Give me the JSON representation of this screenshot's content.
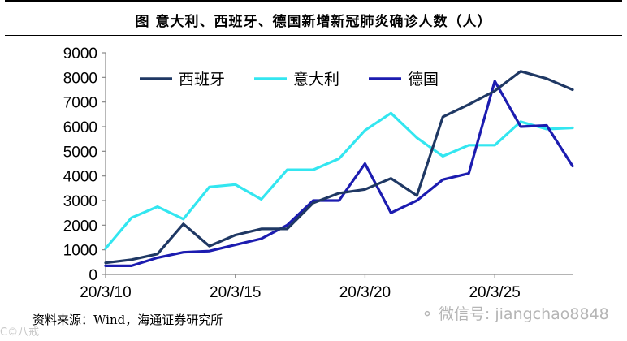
{
  "header": {
    "title": "图  意大利、西班牙、德国新增新冠肺炎确诊人数（人）"
  },
  "footer": {
    "source": "资料来源：Wind，海通证券研究所",
    "watermark_left": "C©八戒",
    "watermark_right": "微信号: jiangchao8848"
  },
  "chart_data": {
    "type": "line",
    "title": "图  意大利、西班牙、德国新增新冠肺炎确诊人数（人）",
    "xlabel": "",
    "ylabel": "",
    "ylim": [
      0,
      9000
    ],
    "yticks": [
      0,
      1000,
      2000,
      3000,
      4000,
      5000,
      6000,
      7000,
      8000,
      9000
    ],
    "ytick_labels": [
      "0",
      "1000",
      "2000",
      "3000",
      "4000",
      "5000",
      "6000",
      "7000",
      "8000",
      "9000"
    ],
    "xticks": [
      "20/3/10",
      "20/3/15",
      "20/3/20",
      "20/3/25"
    ],
    "x": [
      "2020-03-10",
      "2020-03-11",
      "2020-03-12",
      "2020-03-13",
      "2020-03-14",
      "2020-03-15",
      "2020-03-16",
      "2020-03-17",
      "2020-03-18",
      "2020-03-19",
      "2020-03-20",
      "2020-03-21",
      "2020-03-22",
      "2020-03-23",
      "2020-03-24",
      "2020-03-25",
      "2020-03-26",
      "2020-03-27",
      "2020-03-28"
    ],
    "legend_position": "top-left",
    "grid": false,
    "series": [
      {
        "name": "西班牙",
        "color": "#1f3864",
        "values": [
          470,
          600,
          830,
          2050,
          1150,
          1600,
          1850,
          1850,
          2900,
          3300,
          3450,
          3900,
          3200,
          6400,
          6900,
          7450,
          8250,
          7950,
          7500
        ]
      },
      {
        "name": "意大利",
        "color": "#33e6f0",
        "values": [
          1050,
          2300,
          2750,
          2250,
          3550,
          3650,
          3050,
          4250,
          4250,
          4700,
          5850,
          6550,
          5550,
          4800,
          5250,
          5250,
          6200,
          5900,
          5950
        ]
      },
      {
        "name": "德国",
        "color": "#1c1cb0",
        "values": [
          350,
          350,
          680,
          900,
          950,
          1200,
          1450,
          2000,
          3000,
          3000,
          4500,
          2500,
          3000,
          3850,
          4100,
          7850,
          6000,
          6050,
          4400
        ]
      }
    ]
  }
}
